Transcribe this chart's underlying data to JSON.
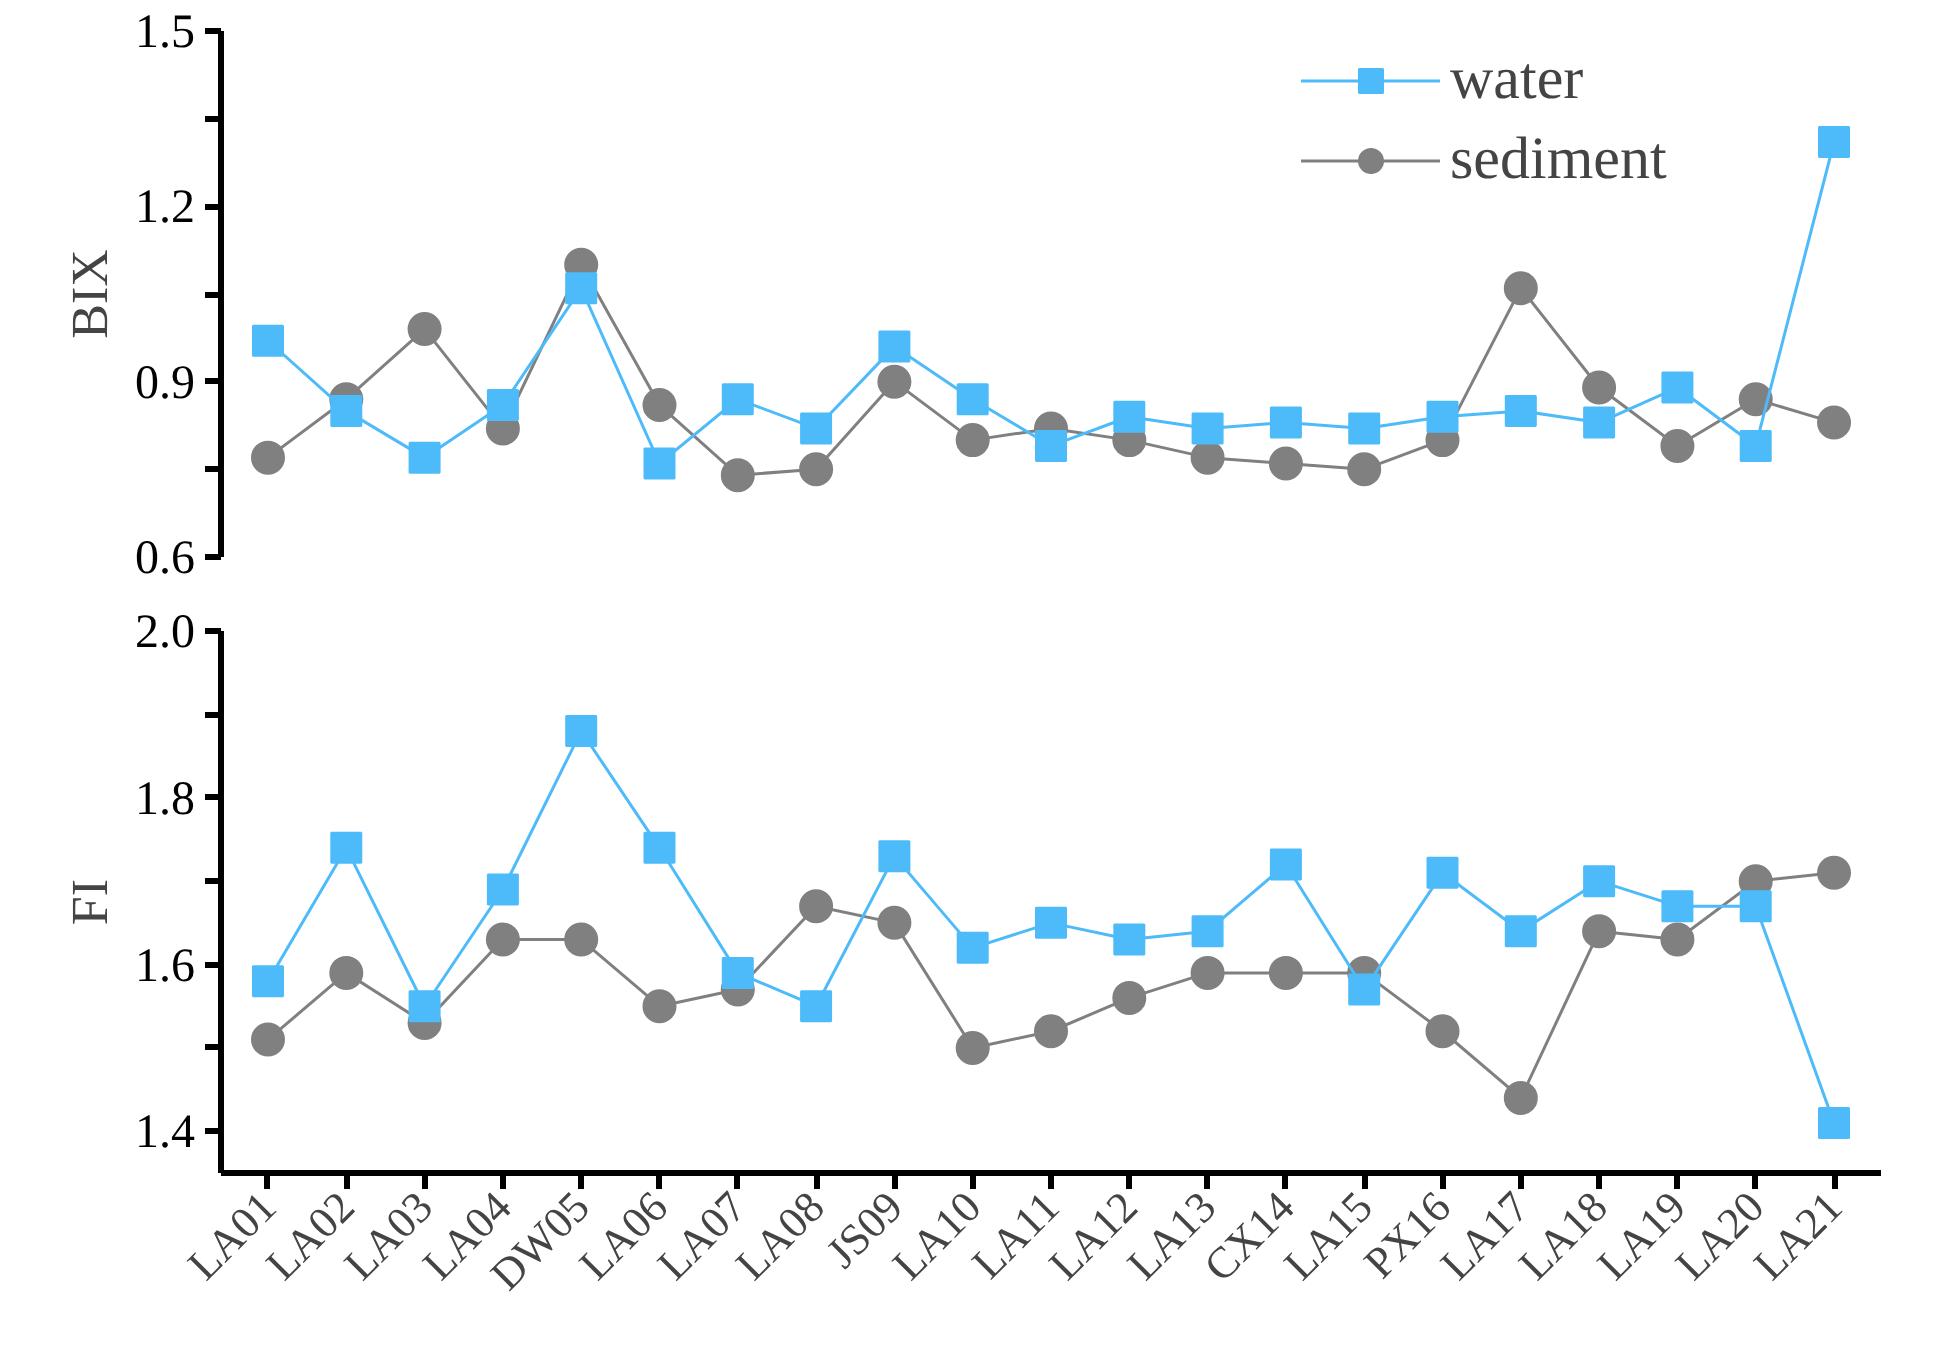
{
  "chart_data": [
    {
      "type": "line",
      "ylabel": "BIX",
      "categories": [
        "LA01",
        "LA02",
        "LA03",
        "LA04",
        "DW05",
        "LA06",
        "LA07",
        "LA08",
        "JS09",
        "LA10",
        "LA11",
        "LA12",
        "LA13",
        "CX14",
        "LA15",
        "PX16",
        "LA17",
        "LA18",
        "LA19",
        "LA20",
        "LA21"
      ],
      "series": [
        {
          "name": "water",
          "color": "#4dbbf9",
          "marker": "square",
          "values": [
            0.97,
            0.85,
            0.77,
            0.86,
            1.06,
            0.76,
            0.87,
            0.82,
            0.96,
            0.87,
            0.79,
            0.84,
            0.82,
            0.83,
            0.82,
            0.84,
            0.85,
            0.83,
            0.89,
            0.79,
            1.31
          ]
        },
        {
          "name": "sediment",
          "color": "#808080",
          "marker": "circle",
          "values": [
            0.77,
            0.87,
            0.99,
            0.82,
            1.1,
            0.86,
            0.74,
            0.75,
            0.9,
            0.8,
            0.82,
            0.8,
            0.77,
            0.76,
            0.75,
            0.8,
            1.06,
            0.89,
            0.79,
            0.87,
            0.83
          ]
        }
      ],
      "ylim": [
        0.6,
        1.5
      ],
      "yticks": [
        0.6,
        {
          "value": 0.75,
          "label": null
        },
        0.9,
        {
          "value": 1.05,
          "label": null
        },
        1.2,
        {
          "value": 1.35,
          "label": null
        },
        1.5
      ],
      "grid": false,
      "legend": "top right",
      "tick_labels": "y",
      "line_style": "solid"
    },
    {
      "type": "line",
      "ylabel": "FI",
      "categories": [
        "LA01",
        "LA02",
        "LA03",
        "LA04",
        "DW05",
        "LA06",
        "LA07",
        "LA08",
        "JS09",
        "LA10",
        "LA11",
        "LA12",
        "LA13",
        "CX14",
        "LA15",
        "PX16",
        "LA17",
        "LA18",
        "LA19",
        "LA20",
        "LA21"
      ],
      "series": [
        {
          "color": "#4dbbf9",
          "marker": "square",
          "values": [
            1.58,
            1.74,
            1.55,
            1.69,
            1.88,
            1.74,
            1.59,
            1.55,
            1.73,
            1.62,
            1.65,
            1.63,
            1.64,
            1.72,
            1.57,
            1.71,
            1.64,
            1.7,
            1.67,
            1.67,
            1.41
          ]
        },
        {
          "color": "#808080",
          "marker": "circle",
          "values": [
            1.51,
            1.59,
            1.53,
            1.63,
            1.63,
            1.55,
            1.57,
            1.67,
            1.65,
            1.5,
            1.52,
            1.56,
            1.59,
            1.59,
            1.59,
            1.52,
            1.44,
            1.64,
            1.63,
            1.7,
            1.71
          ]
        }
      ],
      "ylim": [
        1.35,
        2.0
      ],
      "yticks": [
        1.4,
        {
          "value": 1.5,
          "label": null
        },
        1.6,
        {
          "value": 1.7,
          "label": null
        },
        1.8,
        {
          "value": 1.9,
          "label": null
        },
        {
          "value": 2.0,
          "label": "2.0"
        }
      ],
      "grid": false,
      "legend": false,
      "line_style": "solid"
    }
  ]
}
